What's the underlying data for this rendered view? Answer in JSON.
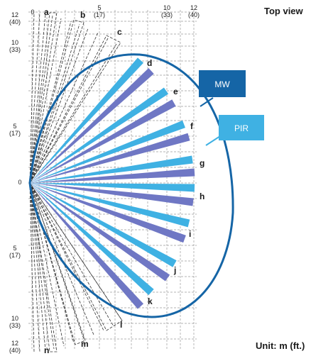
{
  "title": "Top view",
  "unit": "Unit: m (ft.)",
  "legend": {
    "mw": {
      "label": "MW",
      "color": "#1565a6"
    },
    "pir": {
      "label": "PIR",
      "color": "#3fb1e3"
    }
  },
  "colors": {
    "mw_beam": "#6f77c4",
    "pir_beam": "#3fb1e3",
    "boundary": "#1565a6"
  },
  "ticks": {
    "top": [
      {
        "m": "0",
        "ft": ""
      },
      {
        "m": "5",
        "ft": "(17)"
      },
      {
        "m": "10",
        "ft": "(33)"
      },
      {
        "m": "12",
        "ft": "(40)"
      }
    ],
    "left": [
      {
        "m": "12",
        "ft": "(40)"
      },
      {
        "m": "10",
        "ft": "(33)"
      },
      {
        "m": "5",
        "ft": "(17)"
      },
      {
        "m": "0",
        "ft": ""
      },
      {
        "m": "5",
        "ft": "(17)"
      },
      {
        "m": "10",
        "ft": "(33)"
      },
      {
        "m": "12",
        "ft": "(40)"
      }
    ]
  },
  "zones": [
    "a",
    "b",
    "c",
    "d",
    "e",
    "f",
    "g",
    "h",
    "i",
    "j",
    "k",
    "l",
    "m",
    "n"
  ]
}
